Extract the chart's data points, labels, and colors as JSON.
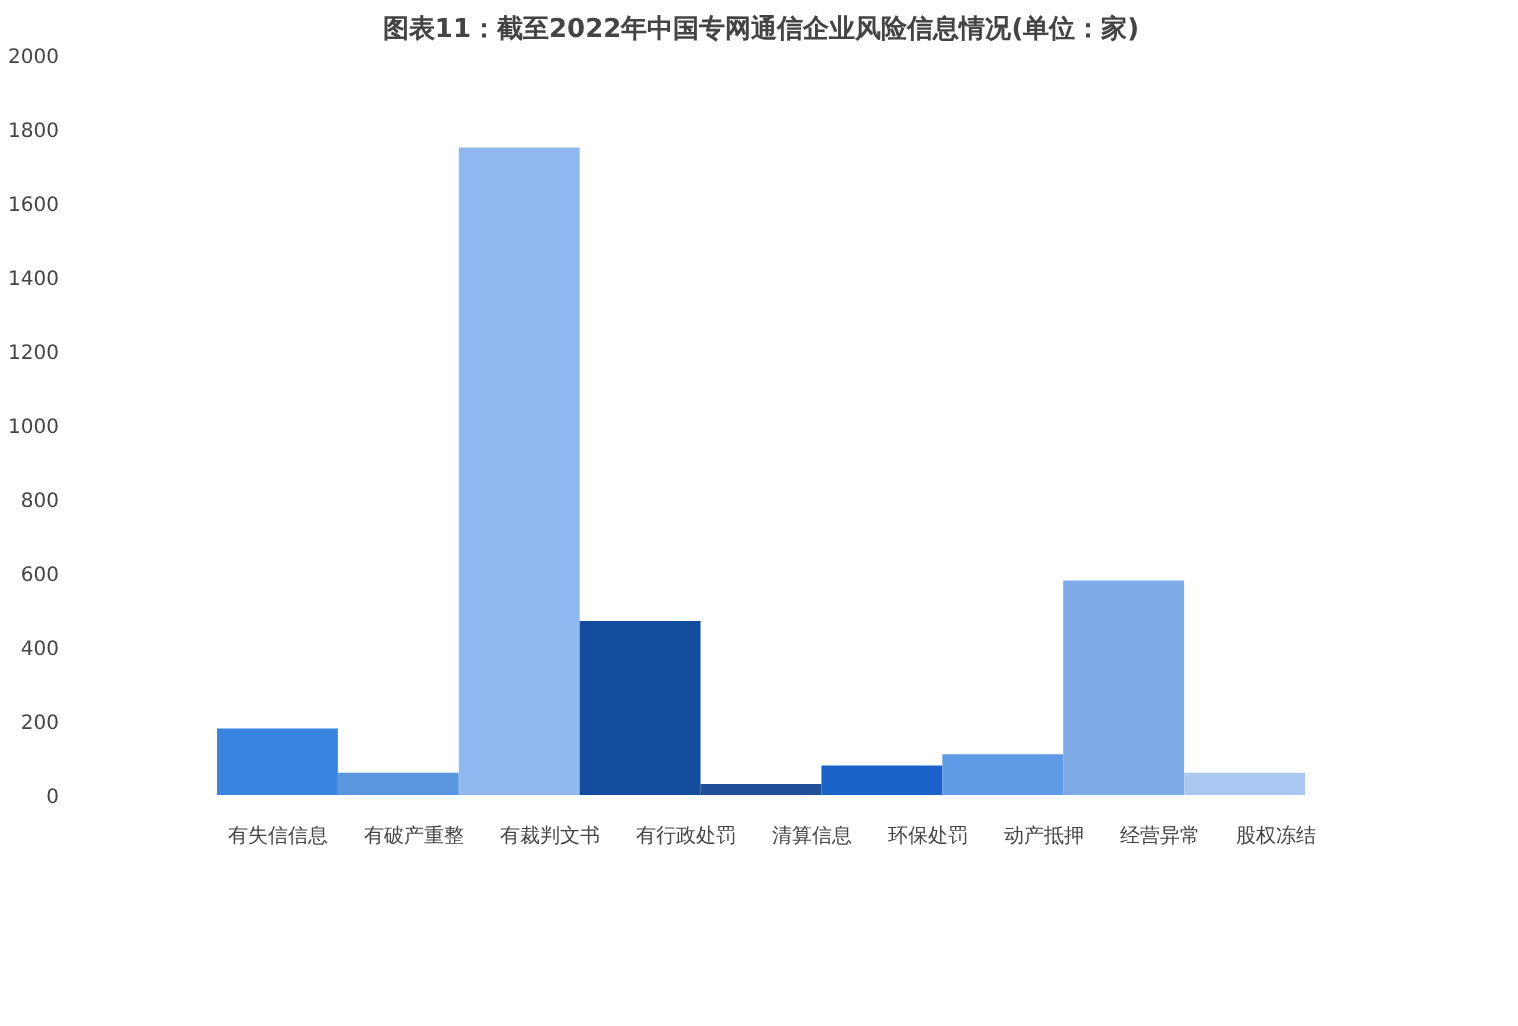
{
  "chart_data": {
    "type": "bar",
    "title": "图表11：截至2022年中国专网通信企业风险信息情况(单位：家)",
    "categories": [
      null
    ],
    "series": [
      {
        "name": "有失信信息",
        "color": "#3a84e0",
        "values": [
          180
        ]
      },
      {
        "name": "有破产重整",
        "color": "#5b96e0",
        "values": [
          60
        ]
      },
      {
        "name": "有裁判文书",
        "color": "#8fb8ee",
        "values": [
          1750
        ]
      },
      {
        "name": "有行政处罚",
        "color": "#134c9c",
        "values": [
          470
        ]
      },
      {
        "name": "清算信息",
        "color": "#1f4f96",
        "values": [
          30
        ]
      },
      {
        "name": "环保处罚",
        "color": "#1a62c8",
        "values": [
          80
        ]
      },
      {
        "name": "动产抵押",
        "color": "#5f9ae6",
        "values": [
          110
        ]
      },
      {
        "name": "经营异常",
        "color": "#7eaae8",
        "values": [
          580
        ]
      },
      {
        "name": "股权冻结",
        "color": "#a9c8f2",
        "values": [
          60
        ]
      }
    ],
    "ylim": [
      0,
      2000
    ],
    "yticks": [
      0,
      200,
      400,
      600,
      800,
      1000,
      1200,
      1400,
      1600,
      1800,
      2000
    ],
    "grid": false,
    "legend": "bottom"
  }
}
